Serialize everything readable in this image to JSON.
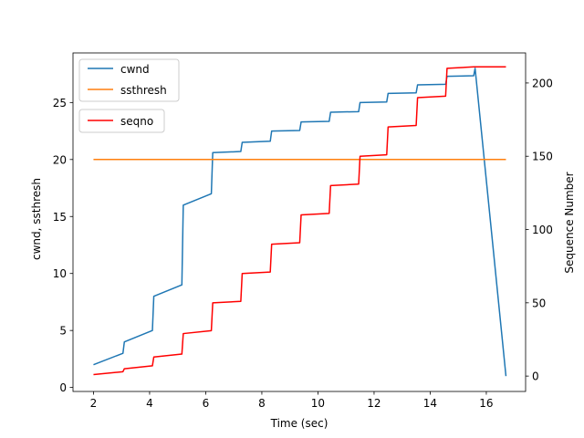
{
  "chart_data": {
    "type": "line",
    "title": "",
    "xlabel": "Time (sec)",
    "ylabel": "cwnd, ssthresh",
    "y2label": "Sequence Number",
    "y2label_color": "#ff0000",
    "xlim": [
      1.27,
      17.4
    ],
    "ylim": [
      -0.35,
      29.35
    ],
    "y2lim": [
      -10.5,
      220.5
    ],
    "xticks": [
      2,
      4,
      6,
      8,
      10,
      12,
      14,
      16
    ],
    "yticks": [
      0,
      5,
      10,
      15,
      20,
      25
    ],
    "y2ticks": [
      0,
      50,
      100,
      150,
      200
    ],
    "grid": false,
    "legend_placement": "top-left",
    "series": [
      {
        "name": "cwnd",
        "axis": "left",
        "color": "#1f77b4",
        "x": [
          2.0,
          3.05,
          3.1,
          4.1,
          4.15,
          5.15,
          5.2,
          6.2,
          6.25,
          7.25,
          7.3,
          8.3,
          8.35,
          9.35,
          9.4,
          10.4,
          10.45,
          11.45,
          11.5,
          12.45,
          12.5,
          13.5,
          13.55,
          14.55,
          14.6,
          15.55,
          15.6,
          16.7
        ],
        "y": [
          2,
          3,
          4,
          5,
          8,
          9,
          16,
          17,
          20.6,
          20.7,
          21.5,
          21.6,
          22.5,
          22.55,
          23.3,
          23.35,
          24.15,
          24.2,
          25.0,
          25.05,
          25.8,
          25.85,
          26.55,
          26.6,
          27.3,
          27.35,
          28.0,
          1.0
        ]
      },
      {
        "name": "ssthresh",
        "axis": "left",
        "color": "#ff7f0e",
        "x": [
          2.0,
          16.7
        ],
        "y": [
          20,
          20
        ]
      },
      {
        "name": "seqno",
        "axis": "right",
        "color": "#ff0000",
        "x": [
          2.0,
          3.05,
          3.1,
          4.1,
          4.15,
          5.15,
          5.2,
          6.2,
          6.25,
          7.25,
          7.3,
          8.3,
          8.35,
          9.35,
          9.4,
          10.4,
          10.45,
          11.45,
          11.5,
          12.45,
          12.5,
          13.5,
          13.55,
          14.55,
          14.6,
          15.55,
          15.6,
          16.7
        ],
        "y": [
          1,
          3,
          5,
          7,
          13,
          15,
          29,
          31,
          50,
          51,
          70,
          71,
          90,
          91,
          110,
          111,
          130,
          131,
          150,
          151,
          170,
          171,
          190,
          191,
          210,
          211,
          211,
          211
        ]
      }
    ]
  }
}
